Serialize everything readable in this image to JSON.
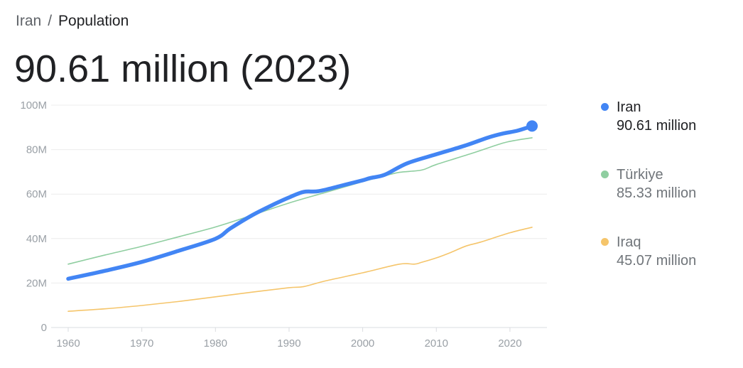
{
  "breadcrumb": {
    "parent": "Iran",
    "separator": "/",
    "current": "Population"
  },
  "headline": "90.61 million (2023)",
  "legend": [
    {
      "name": "Iran",
      "value": "90.61 million",
      "color": "#4285f4"
    },
    {
      "name": "Türkiye",
      "value": "85.33 million",
      "color": "#8fcea0"
    },
    {
      "name": "Iraq",
      "value": "45.07 million",
      "color": "#f5c56b"
    }
  ],
  "chart_data": {
    "type": "line",
    "xlim": [
      1960,
      2023
    ],
    "ylim": [
      0,
      100
    ],
    "x_ticks": [
      1960,
      1970,
      1980,
      1990,
      2000,
      2010,
      2020
    ],
    "y_ticks": [
      0,
      20,
      40,
      60,
      80,
      100
    ],
    "y_tick_labels": [
      "0",
      "20M",
      "40M",
      "60M",
      "80M",
      "100M"
    ],
    "grid": true,
    "series": [
      {
        "name": "Iran",
        "color": "#4285f4",
        "x": [
          1960,
          1965,
          1970,
          1975,
          1980,
          1982,
          1985,
          1988,
          1990,
          1992,
          1994,
          1997,
          2000,
          2001,
          2003,
          2006,
          2010,
          2014,
          2017,
          2019,
          2021,
          2023
        ],
        "y": [
          21.9,
          25.5,
          29.5,
          34.5,
          39.9,
          44.5,
          50.5,
          55.5,
          58.5,
          61.0,
          61.3,
          63.7,
          66.2,
          67.2,
          68.7,
          73.8,
          77.9,
          81.9,
          85.4,
          87.2,
          88.5,
          90.61
        ]
      },
      {
        "name": "Türkiye",
        "color": "#8fcea0",
        "x": [
          1960,
          1965,
          1970,
          1975,
          1980,
          1985,
          1990,
          1995,
          2000,
          2003,
          2005,
          2008,
          2010,
          2015,
          2019,
          2021,
          2023
        ],
        "y": [
          28.5,
          32.6,
          36.5,
          40.8,
          45.2,
          50.5,
          56.0,
          60.8,
          65.6,
          68.2,
          69.8,
          70.8,
          73.3,
          78.5,
          82.9,
          84.3,
          85.33
        ]
      },
      {
        "name": "Iraq",
        "color": "#f5c56b",
        "x": [
          1960,
          1965,
          1970,
          1975,
          1980,
          1985,
          1990,
          1992,
          1995,
          2000,
          2005,
          2007,
          2008,
          2010,
          2012,
          2014,
          2016,
          2020,
          2023
        ],
        "y": [
          7.3,
          8.4,
          9.9,
          11.7,
          13.8,
          15.9,
          17.9,
          18.4,
          21.0,
          24.6,
          28.5,
          28.5,
          29.3,
          31.3,
          33.8,
          36.6,
          38.4,
          42.6,
          45.07
        ]
      }
    ]
  }
}
